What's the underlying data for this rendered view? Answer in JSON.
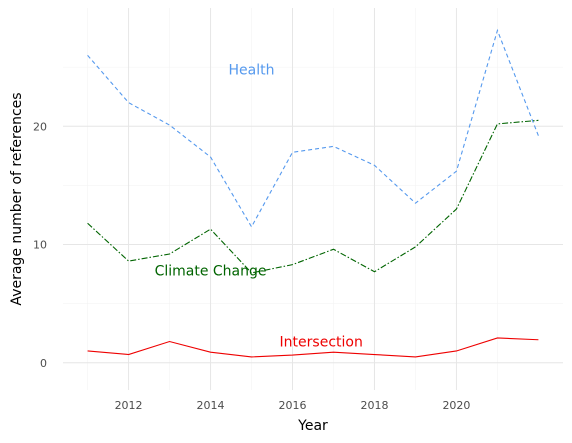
{
  "chart_data": {
    "type": "line",
    "title": "",
    "xlabel": "Year",
    "ylabel": "Average number of references",
    "x": [
      2011,
      2012,
      2013,
      2014,
      2015,
      2016,
      2017,
      2018,
      2019,
      2020,
      2021,
      2022
    ],
    "xlim": [
      2010.4,
      2022.6
    ],
    "ylim": [
      -2.3,
      30
    ],
    "x_ticks": [
      2012,
      2014,
      2016,
      2018,
      2020
    ],
    "y_ticks": [
      0,
      10,
      20
    ],
    "grid": true,
    "legend": "none",
    "series": [
      {
        "name": "Health",
        "color": "#5599ee",
        "dash": "dashed",
        "label_x": 2015.0,
        "label_y": 24.8,
        "values": [
          26.0,
          22.0,
          20.1,
          17.4,
          11.5,
          17.8,
          18.3,
          16.7,
          13.5,
          16.2,
          28.1,
          19.2
        ]
      },
      {
        "name": "Climate Change",
        "color": "#006400",
        "dash": "dashdot",
        "label_x": 2014.0,
        "label_y": 7.8,
        "values": [
          11.8,
          8.6,
          9.2,
          11.3,
          7.6,
          8.3,
          9.6,
          7.7,
          9.8,
          13.0,
          20.2,
          20.5
        ]
      },
      {
        "name": "Intersection",
        "color": "#ee0000",
        "dash": "solid",
        "label_x": 2016.7,
        "label_y": 1.8,
        "values": [
          1.0,
          0.7,
          1.8,
          0.9,
          0.5,
          0.65,
          0.9,
          0.7,
          0.5,
          1.0,
          2.1,
          1.95
        ]
      }
    ]
  }
}
